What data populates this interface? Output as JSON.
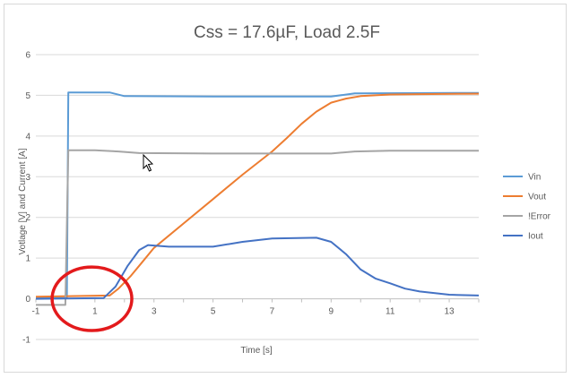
{
  "chart_data": {
    "type": "line",
    "title": "Css = 17.6µF, Load 2.5F",
    "xlabel": "Time [s]",
    "ylabel": "Votlage [V] and Current [A]",
    "xlim": [
      -1,
      14
    ],
    "ylim": [
      -1,
      6
    ],
    "x_ticks": [
      "-1",
      "1",
      "3",
      "5",
      "7",
      "9",
      "11",
      "13"
    ],
    "y_ticks": [
      "-1",
      "0",
      "1",
      "2",
      "3",
      "4",
      "5",
      "6"
    ],
    "grid": "horizontal",
    "legend_position": "right",
    "series": [
      {
        "name": "Vin",
        "color": "#5b9bd5",
        "points": [
          [
            -1,
            0.02
          ],
          [
            0.05,
            0.02
          ],
          [
            0.1,
            5.07
          ],
          [
            1.5,
            5.07
          ],
          [
            2.0,
            4.98
          ],
          [
            5,
            4.97
          ],
          [
            9.0,
            4.97
          ],
          [
            9.8,
            5.05
          ],
          [
            14,
            5.06
          ]
        ]
      },
      {
        "name": "Vout",
        "color": "#ed7d31",
        "points": [
          [
            -1,
            0.05
          ],
          [
            1.5,
            0.08
          ],
          [
            1.8,
            0.25
          ],
          [
            2.2,
            0.55
          ],
          [
            2.6,
            0.9
          ],
          [
            3,
            1.25
          ],
          [
            4,
            1.85
          ],
          [
            5,
            2.45
          ],
          [
            6,
            3.05
          ],
          [
            7,
            3.62
          ],
          [
            7.5,
            3.95
          ],
          [
            8,
            4.3
          ],
          [
            8.5,
            4.6
          ],
          [
            9,
            4.82
          ],
          [
            9.5,
            4.92
          ],
          [
            10,
            4.98
          ],
          [
            11,
            5.02
          ],
          [
            12,
            5.03
          ],
          [
            14,
            5.04
          ]
        ]
      },
      {
        "name": "!Error",
        "color": "#a5a5a5",
        "points": [
          [
            -1,
            -0.15
          ],
          [
            0.0,
            -0.15
          ],
          [
            0.1,
            3.65
          ],
          [
            1,
            3.65
          ],
          [
            1.8,
            3.62
          ],
          [
            2.5,
            3.58
          ],
          [
            5,
            3.57
          ],
          [
            9.0,
            3.57
          ],
          [
            9.8,
            3.62
          ],
          [
            11,
            3.64
          ],
          [
            14,
            3.64
          ]
        ]
      },
      {
        "name": "Iout",
        "color": "#4472c4",
        "points": [
          [
            -1,
            0.0
          ],
          [
            1.3,
            0.02
          ],
          [
            1.7,
            0.3
          ],
          [
            2.1,
            0.8
          ],
          [
            2.5,
            1.2
          ],
          [
            2.8,
            1.32
          ],
          [
            3.5,
            1.28
          ],
          [
            5,
            1.28
          ],
          [
            6,
            1.4
          ],
          [
            7,
            1.48
          ],
          [
            8.5,
            1.5
          ],
          [
            9.0,
            1.4
          ],
          [
            9.5,
            1.1
          ],
          [
            10,
            0.72
          ],
          [
            10.5,
            0.5
          ],
          [
            11,
            0.38
          ],
          [
            11.5,
            0.25
          ],
          [
            12,
            0.18
          ],
          [
            13,
            0.1
          ],
          [
            14,
            0.08
          ]
        ]
      }
    ],
    "annotations": [
      {
        "type": "ellipse",
        "color": "#e31a1c",
        "cx": 0.9,
        "cy": 0.0,
        "rx": 1.35,
        "ry": 0.78
      }
    ]
  }
}
